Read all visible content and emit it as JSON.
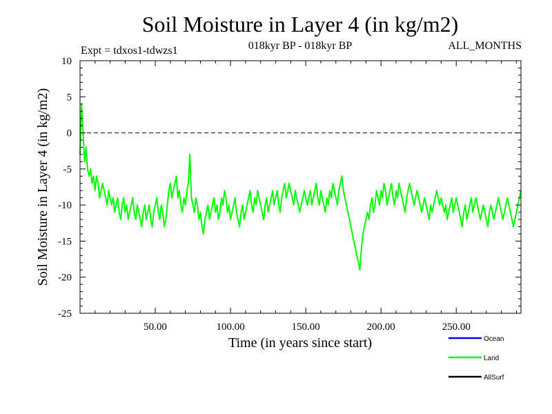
{
  "chart_data": {
    "type": "line",
    "title": "Soil Moisture in Layer 4 (in kg/m2)",
    "subtitle_left": "Expt = tdxos1-tdwzs1",
    "subtitle_center": "018kyr BP - 018kyr BP",
    "subtitle_right": "ALL_MONTHS",
    "xlabel": "Time (in years since start)",
    "ylabel": "Soil Moisture in Layer 4 (in kg/m2)",
    "xlim": [
      0,
      293
    ],
    "ylim": [
      -25,
      10
    ],
    "x_ticks": [
      50,
      100,
      150,
      200,
      250
    ],
    "x_tick_labels": [
      "50.00",
      "100.00",
      "150.00",
      "200.00",
      "250.00"
    ],
    "y_ticks": [
      10,
      5,
      0,
      -5,
      -10,
      -15,
      -20,
      -25
    ],
    "y_tick_labels": [
      "10",
      "5",
      "0",
      "-5",
      "-10",
      "-15",
      "-20",
      "-25"
    ],
    "reference_line": 0,
    "legend": [
      {
        "name": "Ocean",
        "color": "#0000ff"
      },
      {
        "name": "Land",
        "color": "#00ff00"
      },
      {
        "name": "AllSurf",
        "color": "#000000"
      }
    ],
    "series": [
      {
        "name": "Land",
        "color": "#00ff00",
        "x_start": 0,
        "x_step": 1,
        "values": [
          -3,
          4,
          0,
          -4,
          -2,
          -5,
          -6,
          -5,
          -7,
          -6,
          -8,
          -6,
          -7,
          -9,
          -8,
          -7,
          -8,
          -9,
          -10,
          -8,
          -9,
          -10,
          -9,
          -11,
          -10,
          -9,
          -11,
          -12,
          -10,
          -9,
          -11,
          -10,
          -12,
          -11,
          -10,
          -9,
          -11,
          -12,
          -10,
          -11,
          -12,
          -13,
          -11,
          -10,
          -12,
          -11,
          -10,
          -12,
          -13,
          -11,
          -10,
          -9,
          -11,
          -12,
          -10,
          -11,
          -13,
          -12,
          -10,
          -8,
          -7,
          -9,
          -8,
          -7,
          -6,
          -9,
          -8,
          -10,
          -11,
          -9,
          -10,
          -8,
          -7,
          -3,
          -9,
          -10,
          -11,
          -9,
          -10,
          -12,
          -11,
          -13,
          -14,
          -12,
          -11,
          -10,
          -12,
          -11,
          -10,
          -9,
          -11,
          -10,
          -12,
          -11,
          -9,
          -10,
          -8,
          -9,
          -11,
          -10,
          -12,
          -11,
          -10,
          -9,
          -11,
          -12,
          -13,
          -11,
          -10,
          -12,
          -11,
          -10,
          -9,
          -8,
          -10,
          -11,
          -9,
          -10,
          -8,
          -9,
          -10,
          -11,
          -12,
          -10,
          -9,
          -11,
          -10,
          -9,
          -8,
          -10,
          -9,
          -8,
          -10,
          -11,
          -9,
          -8,
          -7,
          -9,
          -8,
          -7,
          -8,
          -9,
          -10,
          -8,
          -9,
          -10,
          -11,
          -10,
          -9,
          -8,
          -9,
          -10,
          -9,
          -8,
          -10,
          -9,
          -8,
          -7,
          -9,
          -10,
          -8,
          -9,
          -10,
          -11,
          -9,
          -10,
          -8,
          -9,
          -7,
          -8,
          -9,
          -10,
          -8,
          -7,
          -6,
          -8,
          -9,
          -10,
          -11,
          -12,
          -13,
          -14,
          -15,
          -16,
          -17,
          -18,
          -19,
          -16,
          -14,
          -13,
          -12,
          -11,
          -12,
          -10,
          -9,
          -11,
          -10,
          -8,
          -9,
          -10,
          -8,
          -9,
          -7,
          -8,
          -10,
          -9,
          -8,
          -7,
          -9,
          -10,
          -8,
          -9,
          -7,
          -8,
          -9,
          -10,
          -11,
          -9,
          -8,
          -7,
          -8,
          -9,
          -10,
          -9,
          -8,
          -9,
          -10,
          -11,
          -10,
          -9,
          -10,
          -11,
          -12,
          -10,
          -11,
          -10,
          -9,
          -8,
          -9,
          -10,
          -9,
          -10,
          -11,
          -10,
          -12,
          -11,
          -10,
          -9,
          -11,
          -10,
          -9,
          -10,
          -11,
          -12,
          -13,
          -11,
          -10,
          -12,
          -11,
          -10,
          -9,
          -11,
          -10,
          -9,
          -10,
          -11,
          -12,
          -11,
          -10,
          -11,
          -12,
          -13,
          -11,
          -10,
          -11,
          -12,
          -11,
          -10,
          -9,
          -10,
          -11,
          -12,
          -11,
          -10,
          -9,
          -10,
          -11,
          -12,
          -13,
          -12,
          -11,
          -10,
          -9,
          -8
        ]
      }
    ]
  }
}
